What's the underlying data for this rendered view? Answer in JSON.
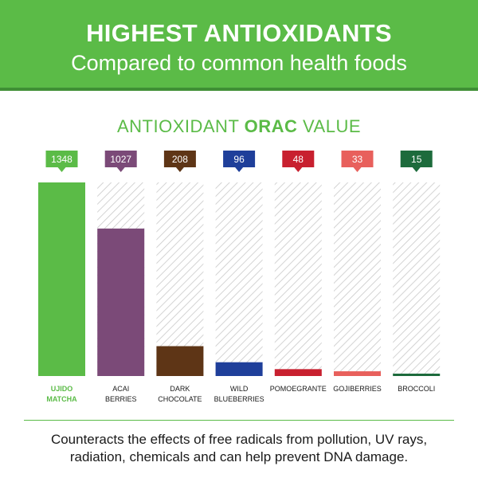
{
  "banner": {
    "title": "HIGHEST ANTIOXIDANTS",
    "subtitle": "Compared to common health foods",
    "bg_color": "#5bbb47"
  },
  "chart_title": {
    "prefix": "ANTIOXIDANT ",
    "bold": "ORAC",
    "suffix": " VALUE"
  },
  "chart_data": {
    "type": "bar",
    "title": "ANTIOXIDANT ORAC VALUE",
    "ylim": [
      0,
      1348
    ],
    "categories": [
      [
        "UJIDO",
        "MATCHA"
      ],
      [
        "ACAI",
        "BERRIES"
      ],
      [
        "DARK",
        "CHOCOLATE"
      ],
      [
        "WILD",
        "BLUEBERRIES"
      ],
      [
        "POMOEGRANTE"
      ],
      [
        "GOJIBERRIES"
      ],
      [
        "BROCCOLI"
      ]
    ],
    "values": [
      1348,
      1027,
      208,
      96,
      48,
      33,
      15
    ],
    "colors": [
      "#5bbb47",
      "#7b4a78",
      "#5e3516",
      "#1f3f9a",
      "#c8202f",
      "#e8605c",
      "#1d6b3c"
    ],
    "highlight_label_color": "#5bbb47",
    "background_pattern": "diagonal-hatch"
  },
  "footer": {
    "line1": "Counteracts the effects of free radicals from pollution, UV rays,",
    "line2": "radiation, chemicals and can help prevent DNA damage."
  }
}
